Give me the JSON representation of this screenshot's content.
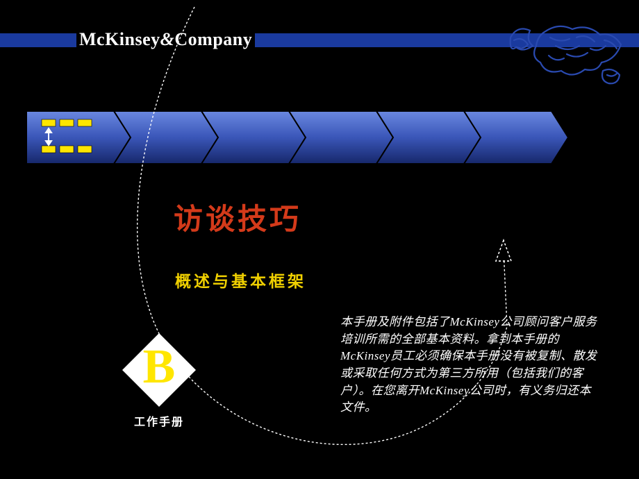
{
  "colors": {
    "background": "#000000",
    "header_bar": "#1a3a9e",
    "chevron_fill_top": "#5a7ad6",
    "chevron_fill_bottom": "#1a2f7a",
    "chevron_stroke": "#000000",
    "yellow": "#ffe600",
    "title_red": "#d43a1a",
    "subtitle_yellow": "#f0d000",
    "white": "#ffffff",
    "map_stroke": "#2a4ab0"
  },
  "logo": {
    "text_a": "McKinsey",
    "amp": "&",
    "text_b": "Company"
  },
  "chevrons": {
    "count": 6,
    "width": 150,
    "height": 76,
    "notch": 24
  },
  "title": "访谈技巧",
  "subtitle": "概述与基本框架",
  "badge": {
    "letter": "B",
    "label": "工作手册"
  },
  "disclaimer": "本手册及附件包括了McKinsey公司顾问客户服务培训所需的全部基本资料。拿到本手册的McKinsey员工必须确保本手册没有被复制、散发或采取任何方式为第三方所用（包括我们的客户）。在您离开McKinsey公司时，有义务归还本文件。"
}
